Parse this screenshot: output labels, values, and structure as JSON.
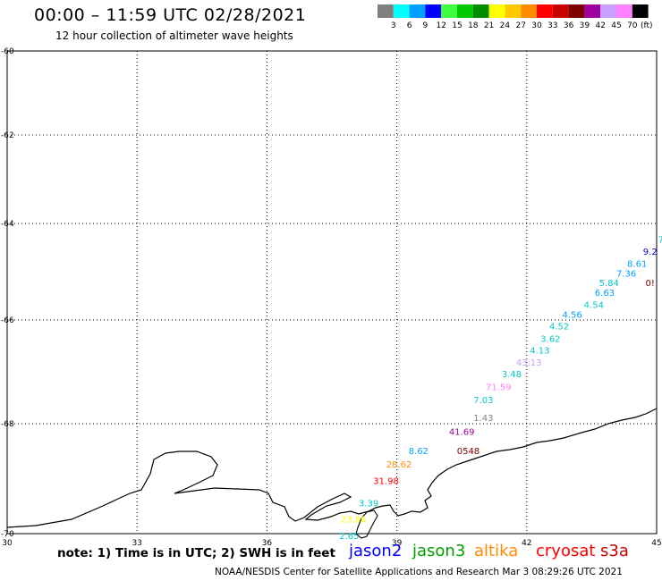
{
  "header": {
    "title": "00:00 – 11:59 UTC 02/28/2021",
    "subtitle": "12 hour collection of altimeter wave heights"
  },
  "legend": {
    "colors": [
      "#808080",
      "#00ffff",
      "#00a0ff",
      "#0000ff",
      "#40ff40",
      "#00c800",
      "#008c00",
      "#ffff00",
      "#ffc800",
      "#ff8c00",
      "#ff0000",
      "#c80000",
      "#800000",
      "#a000a0",
      "#c8a0ff",
      "#ff80ff",
      "#000000"
    ],
    "labels": [
      "3",
      "6",
      "9",
      "12",
      "15",
      "18",
      "21",
      "24",
      "27",
      "30",
      "33",
      "36",
      "39",
      "42",
      "45",
      "70"
    ],
    "unit": "(ft)"
  },
  "axes": {
    "lon_ticks": [
      "30",
      "33",
      "36",
      "39",
      "42",
      "45"
    ],
    "lat_ticks": [
      "-60",
      "-62",
      "-64",
      "-66",
      "-68",
      "-70"
    ]
  },
  "wave_labels": [
    {
      "text": "7",
      "color": "#00c8c8",
      "lon": 45.1,
      "lat": -64.4
    },
    {
      "text": "9.2",
      "color": "#0000c8",
      "lon": 44.85,
      "lat": -64.65
    },
    {
      "text": "8.61",
      "color": "#00a0ff",
      "lon": 44.55,
      "lat": -64.9
    },
    {
      "text": "7.36",
      "color": "#00a0ff",
      "lon": 44.3,
      "lat": -65.1
    },
    {
      "text": "0!",
      "color": "#800000",
      "lon": 44.85,
      "lat": -65.3
    },
    {
      "text": "5.84",
      "color": "#00c8c8",
      "lon": 43.9,
      "lat": -65.3
    },
    {
      "text": "6.63",
      "color": "#00a0ff",
      "lon": 43.8,
      "lat": -65.5
    },
    {
      "text": "4.54",
      "color": "#00c8c8",
      "lon": 43.55,
      "lat": -65.75
    },
    {
      "text": "4.56",
      "color": "#00a0ff",
      "lon": 43.05,
      "lat": -65.95
    },
    {
      "text": "4.52",
      "color": "#00c8c8",
      "lon": 42.75,
      "lat": -66.18
    },
    {
      "text": "3.62",
      "color": "#00c8c8",
      "lon": 42.55,
      "lat": -66.42
    },
    {
      "text": "4.13",
      "color": "#00c8c8",
      "lon": 42.3,
      "lat": -66.65
    },
    {
      "text": "43.13",
      "color": "#c8a0ff",
      "lon": 42.05,
      "lat": -66.88
    },
    {
      "text": "3.48",
      "color": "#00c8c8",
      "lon": 41.65,
      "lat": -67.1
    },
    {
      "text": "71.59",
      "color": "#ff80ff",
      "lon": 41.35,
      "lat": -67.35
    },
    {
      "text": "7.03",
      "color": "#00c8c8",
      "lon": 41.0,
      "lat": -67.6
    },
    {
      "text": "1.43",
      "color": "#808080",
      "lon": 41.0,
      "lat": -67.95
    },
    {
      "text": "41.69",
      "color": "#a000a0",
      "lon": 40.5,
      "lat": -68.2
    },
    {
      "text": "8.62",
      "color": "#00a0ff",
      "lon": 39.5,
      "lat": -68.55
    },
    {
      "text": "0548",
      "color": "#800000",
      "lon": 40.65,
      "lat": -68.55
    },
    {
      "text": "28.62",
      "color": "#ff8c00",
      "lon": 39.05,
      "lat": -68.8
    },
    {
      "text": "31.98",
      "color": "#ff0000",
      "lon": 38.75,
      "lat": -69.1
    },
    {
      "text": "3.39",
      "color": "#00c8c8",
      "lon": 38.35,
      "lat": -69.5
    },
    {
      "text": "23.86",
      "color": "#ffff00",
      "lon": 38.0,
      "lat": -69.8
    },
    {
      "text": "2.65",
      "color": "#00c8c8",
      "lon": 37.9,
      "lat": -70.1
    }
  ],
  "note": "note: 1) Time is in UTC; 2) SWH is in feet",
  "satellites": [
    {
      "name": "jason2",
      "color": "#0000ff"
    },
    {
      "name": "jason3",
      "color": "#00a000"
    },
    {
      "name": "altika",
      "color": "#ff8c00"
    },
    {
      "name": "cryosat",
      "color": "#ff0000"
    },
    {
      "name": "s3a",
      "color": "#c80000"
    }
  ],
  "credit": "NOAA/NESDIS Center for Satellite Applications and Research   Mar  3 08:29:26 UTC 2021"
}
